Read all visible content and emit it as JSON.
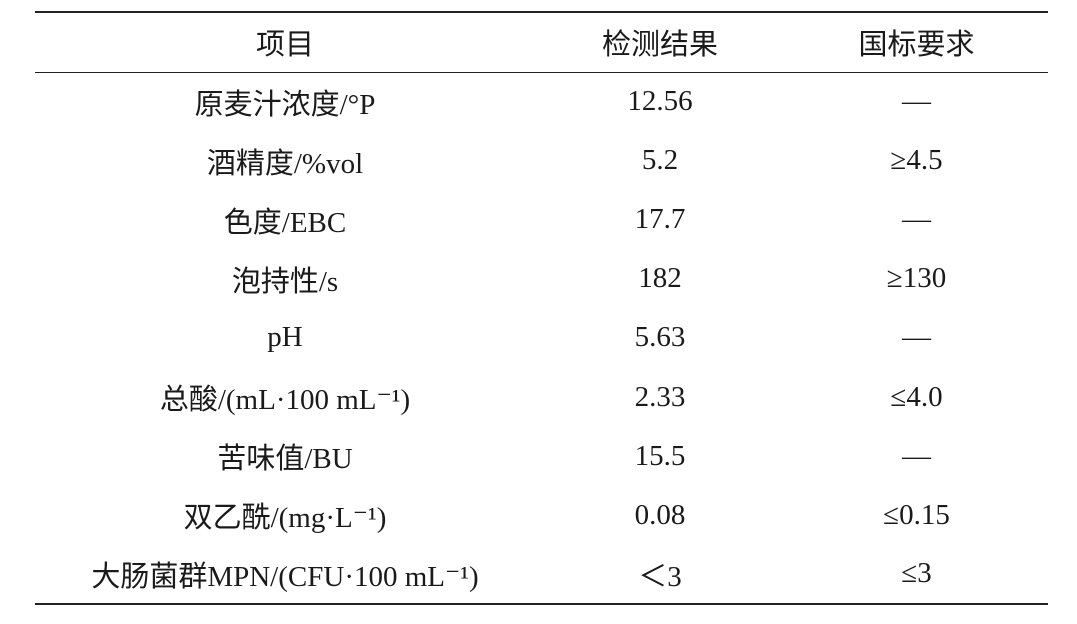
{
  "table": {
    "header": [
      "项目",
      "检测结果",
      "国标要求"
    ],
    "rows": [
      [
        "原麦汁浓度/°P",
        "12.56",
        "—"
      ],
      [
        "酒精度/%vol",
        "5.2",
        "≥4.5"
      ],
      [
        "色度/EBC",
        "17.7",
        "—"
      ],
      [
        "泡持性/s",
        "182",
        "≥130"
      ],
      [
        "pH",
        "5.63",
        "—"
      ],
      [
        "总酸/(mL·100 mL⁻¹)",
        "2.33",
        "≤4.0"
      ],
      [
        "苦味值/BU",
        "15.5",
        "—"
      ],
      [
        "双乙酰/(mg·L⁻¹)",
        "0.08",
        "≤0.15"
      ],
      [
        "大肠菌群MPN/(CFU·100 mL⁻¹)",
        "＜3",
        "≤3"
      ]
    ]
  }
}
